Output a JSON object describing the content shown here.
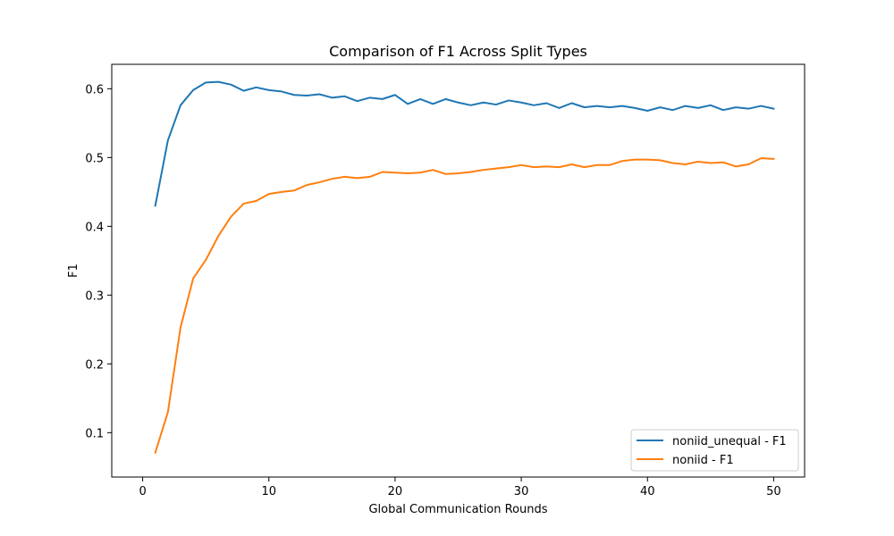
{
  "chart_data": {
    "type": "line",
    "title": "Comparison of F1 Across Split Types",
    "xlabel": "Global Communication Rounds",
    "ylabel": "F1",
    "xlim": [
      -2.45,
      52.45
    ],
    "ylim": [
      0.0355,
      0.6355
    ],
    "xticks": [
      0,
      10,
      20,
      30,
      40,
      50
    ],
    "yticks": [
      0.1,
      0.2,
      0.3,
      0.4,
      0.5,
      0.6
    ],
    "xtick_labels": [
      "0",
      "10",
      "20",
      "30",
      "40",
      "50"
    ],
    "ytick_labels": [
      "0.1",
      "0.2",
      "0.3",
      "0.4",
      "0.5",
      "0.6"
    ],
    "grid": false,
    "legend_position": "lower right",
    "x": [
      1,
      2,
      3,
      4,
      5,
      6,
      7,
      8,
      9,
      10,
      11,
      12,
      13,
      14,
      15,
      16,
      17,
      18,
      19,
      20,
      21,
      22,
      23,
      24,
      25,
      26,
      27,
      28,
      29,
      30,
      31,
      32,
      33,
      34,
      35,
      36,
      37,
      38,
      39,
      40,
      41,
      42,
      43,
      44,
      45,
      46,
      47,
      48,
      49,
      50
    ],
    "series": [
      {
        "name": "noniid_unequal - F1",
        "color": "#1f77b4",
        "values": [
          0.43,
          0.525,
          0.576,
          0.598,
          0.609,
          0.61,
          0.606,
          0.597,
          0.602,
          0.598,
          0.596,
          0.591,
          0.59,
          0.592,
          0.587,
          0.589,
          0.582,
          0.587,
          0.585,
          0.591,
          0.578,
          0.585,
          0.578,
          0.585,
          0.58,
          0.576,
          0.58,
          0.577,
          0.583,
          0.58,
          0.576,
          0.579,
          0.572,
          0.579,
          0.573,
          0.575,
          0.573,
          0.575,
          0.572,
          0.568,
          0.573,
          0.569,
          0.575,
          0.572,
          0.576,
          0.569,
          0.573,
          0.571,
          0.575,
          0.571
        ]
      },
      {
        "name": "noniid - F1",
        "color": "#ff7f0e",
        "values": [
          0.071,
          0.13,
          0.253,
          0.324,
          0.351,
          0.386,
          0.414,
          0.433,
          0.437,
          0.447,
          0.45,
          0.452,
          0.46,
          0.464,
          0.469,
          0.472,
          0.47,
          0.472,
          0.479,
          0.478,
          0.477,
          0.478,
          0.482,
          0.476,
          0.477,
          0.479,
          0.482,
          0.484,
          0.486,
          0.489,
          0.486,
          0.487,
          0.486,
          0.49,
          0.486,
          0.489,
          0.489,
          0.495,
          0.497,
          0.497,
          0.496,
          0.492,
          0.49,
          0.494,
          0.492,
          0.493,
          0.487,
          0.49,
          0.499,
          0.498
        ]
      }
    ]
  }
}
